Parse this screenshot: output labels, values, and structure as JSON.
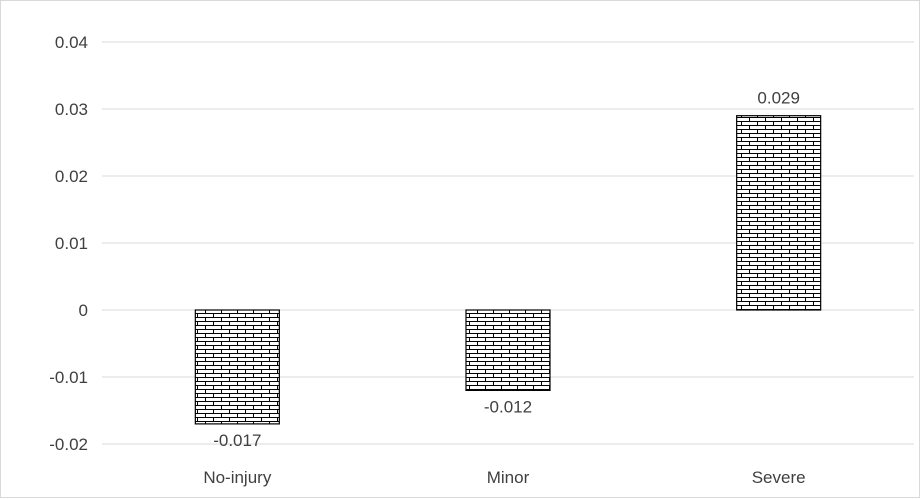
{
  "chart_data": {
    "type": "bar",
    "categories": [
      "No-injury",
      "Minor",
      "Severe"
    ],
    "values": [
      -0.017,
      -0.012,
      0.029
    ],
    "data_labels": [
      "-0.017",
      "-0.012",
      "0.029"
    ],
    "yticks": [
      "0.04",
      "0.03",
      "0.02",
      "0.01",
      "0",
      "-0.01",
      "-0.02"
    ],
    "ylim": [
      -0.02,
      0.04
    ],
    "grid": true,
    "bar_pattern": "brick",
    "colors": {
      "bar_fill": "#ffffff",
      "bar_stroke": "#000000",
      "grid": "#d9d9d9",
      "text": "#404040"
    }
  }
}
